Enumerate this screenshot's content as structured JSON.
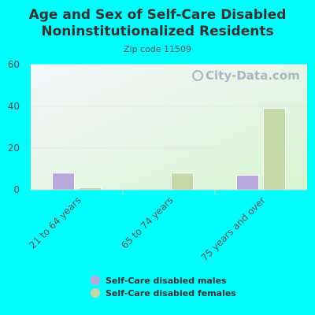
{
  "colors": {
    "background": "#00FFFF",
    "males": "#b9a8db",
    "females": "#c5d9a8",
    "plot_top": "#f4f6fb",
    "plot_bottom": "#d7f5d0"
  },
  "watermark": "City-Data.com",
  "chart_data": {
    "type": "bar",
    "title": "Age and Sex of Self-Care Disabled Noninstitutionalized Residents",
    "title_lines": [
      "Age and Sex of Self-Care Disabled",
      "Noninstitutionalized Residents"
    ],
    "subtitle": "Zip code 11509",
    "categories": [
      "21 to 64 years",
      "65 to 74 years",
      "75 years and over"
    ],
    "series": [
      {
        "name": "Self-Care disabled males",
        "values": [
          8,
          0,
          7
        ]
      },
      {
        "name": "Self-Care disabled females",
        "values": [
          1,
          8,
          39
        ]
      }
    ],
    "ylim": [
      0,
      60
    ],
    "yticks": [
      0,
      20,
      40,
      60
    ],
    "grid": true,
    "legend": "bottom"
  }
}
